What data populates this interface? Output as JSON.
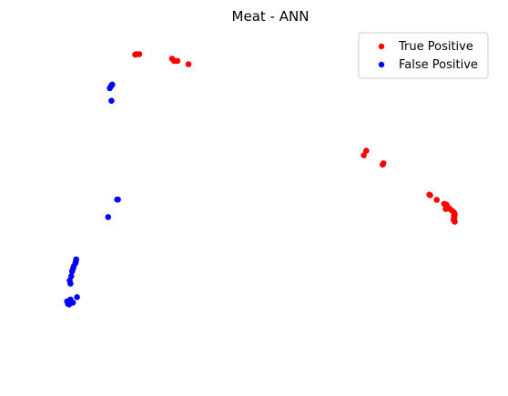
{
  "chart_data": {
    "type": "scatter",
    "title": "Meat - ANN",
    "xlabel": "",
    "ylabel": "",
    "axes_visible": false,
    "grid": false,
    "legend_position": "top-right",
    "xlim": [
      0,
      100
    ],
    "ylim": [
      0,
      100
    ],
    "series": [
      {
        "name": "True Positive",
        "color": "#ff0000",
        "points": [
          [
            17.0,
            96.4
          ],
          [
            17.2,
            96.6
          ],
          [
            18.0,
            96.6
          ],
          [
            26.0,
            95.1
          ],
          [
            26.5,
            94.4
          ],
          [
            27.3,
            94.4
          ],
          [
            30.0,
            93.3
          ],
          [
            72.8,
            63.6
          ],
          [
            73.4,
            65.1
          ],
          [
            77.4,
            60.6
          ],
          [
            77.6,
            61.0
          ],
          [
            88.8,
            50.8
          ],
          [
            89.0,
            50.6
          ],
          [
            90.6,
            49.1
          ],
          [
            92.4,
            47.8
          ],
          [
            93.0,
            47.5
          ],
          [
            93.3,
            46.7
          ],
          [
            92.8,
            46.1
          ],
          [
            93.8,
            46.1
          ],
          [
            94.4,
            45.5
          ],
          [
            94.8,
            45.0
          ],
          [
            95.0,
            44.4
          ],
          [
            94.8,
            43.9
          ],
          [
            94.9,
            43.3
          ],
          [
            94.7,
            42.6
          ],
          [
            95.0,
            42.0
          ]
        ]
      },
      {
        "name": "False Positive",
        "color": "#0000ff",
        "points": [
          [
            11.4,
            86.7
          ],
          [
            11.1,
            86.2
          ],
          [
            10.8,
            85.5
          ],
          [
            11.2,
            81.4
          ],
          [
            12.6,
            49.2
          ],
          [
            12.8,
            49.2
          ],
          [
            10.4,
            43.5
          ],
          [
            2.6,
            29.7
          ],
          [
            2.5,
            29.0
          ],
          [
            2.4,
            28.5
          ],
          [
            2.0,
            27.4
          ],
          [
            1.8,
            26.6
          ],
          [
            1.6,
            25.8
          ],
          [
            1.4,
            24.2
          ],
          [
            1.0,
            22.8
          ],
          [
            1.2,
            21.8
          ],
          [
            2.8,
            17.4
          ],
          [
            1.2,
            16.6
          ],
          [
            1.8,
            15.6
          ],
          [
            0.8,
            15.8
          ],
          [
            0.4,
            16.0
          ],
          [
            0.6,
            15.2
          ],
          [
            0.9,
            15.0
          ]
        ]
      }
    ]
  }
}
